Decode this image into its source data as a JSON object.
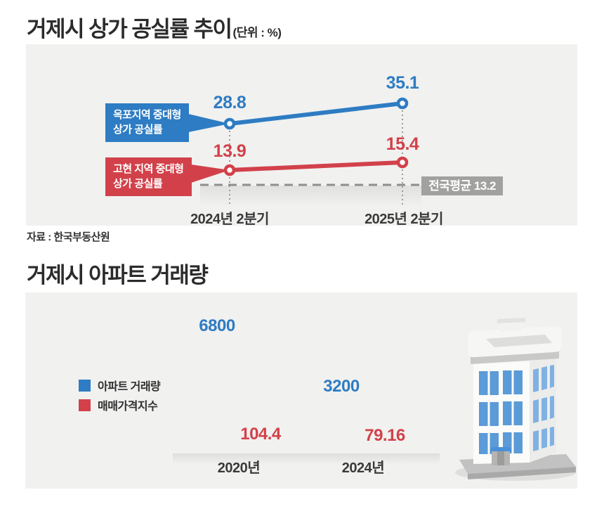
{
  "colors": {
    "blue": "#2e7cc3",
    "red": "#d2414a",
    "gray_box": "#a1a19f",
    "panel_bg": "#f1f1f0",
    "dash_line": "#8f8f8f",
    "title_text": "#2b2b2b"
  },
  "chart1": {
    "title": "거제시 상가 공실률 추이",
    "unit": "(단위 : %)",
    "source": "자료 : 한국부동산원",
    "callouts": {
      "okpo_line1": "옥포지역 중대형",
      "okpo_line2": "상가 공실률",
      "gohyeon_line1": "고현 지역 중대형",
      "gohyeon_line2": "상가 공실률"
    },
    "national_avg_label": "전국평균 13.2"
  },
  "chart2": {
    "title": "거제시 아파트 거래량",
    "legend": [
      {
        "label": "아파트 거래량",
        "color": "#2e7cc3"
      },
      {
        "label": "매매가격지수",
        "color": "#d2414a"
      }
    ]
  },
  "chart_data": [
    {
      "type": "line",
      "title": "거제시 상가 공실률 추이",
      "unit": "%",
      "x": [
        "2024년 2분기",
        "2025년 2분기"
      ],
      "series": [
        {
          "name": "옥포지역 중대형 상가 공실률",
          "color": "#2e7cc3",
          "values": [
            28.8,
            35.1
          ]
        },
        {
          "name": "고현 지역 중대형 상가 공실률",
          "color": "#d2414a",
          "values": [
            13.9,
            15.4
          ]
        }
      ],
      "reference_line": {
        "label": "전국평균",
        "value": 13.2,
        "style": "dashed",
        "color": "#8f8f8f"
      },
      "legend_position": "left",
      "grid": false,
      "source": "한국부동산원"
    },
    {
      "type": "bar",
      "title": "거제시 아파트 거래량",
      "categories": [
        "2020년",
        "2024년"
      ],
      "series": [
        {
          "name": "아파트 거래량",
          "color": "#2e7cc3",
          "values": [
            6800,
            3200
          ]
        },
        {
          "name": "매매가격지수",
          "color": "#d2414a",
          "values": [
            104.4,
            79.16
          ]
        }
      ],
      "legend_position": "left",
      "grid": false
    }
  ]
}
